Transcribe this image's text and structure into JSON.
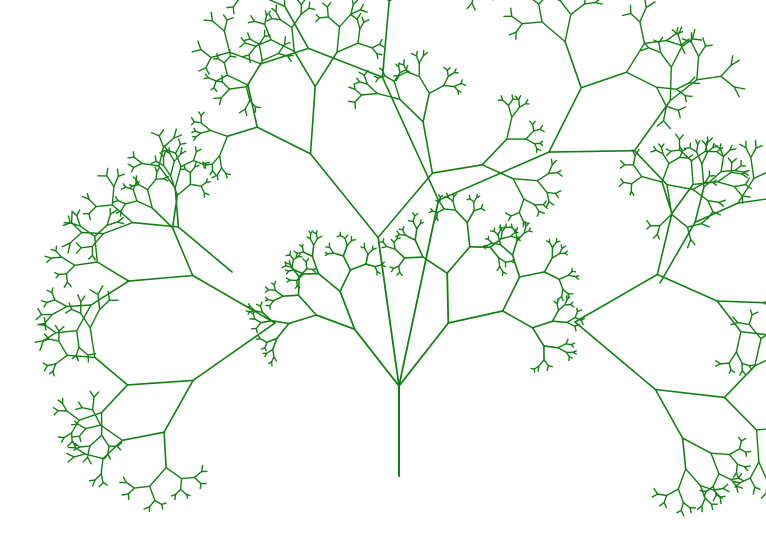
{
  "drawing": {
    "subject": "fractal-tree",
    "stroke_color": "#118011",
    "background_color": "#ffffff",
    "recursion_depth": 9
  }
}
